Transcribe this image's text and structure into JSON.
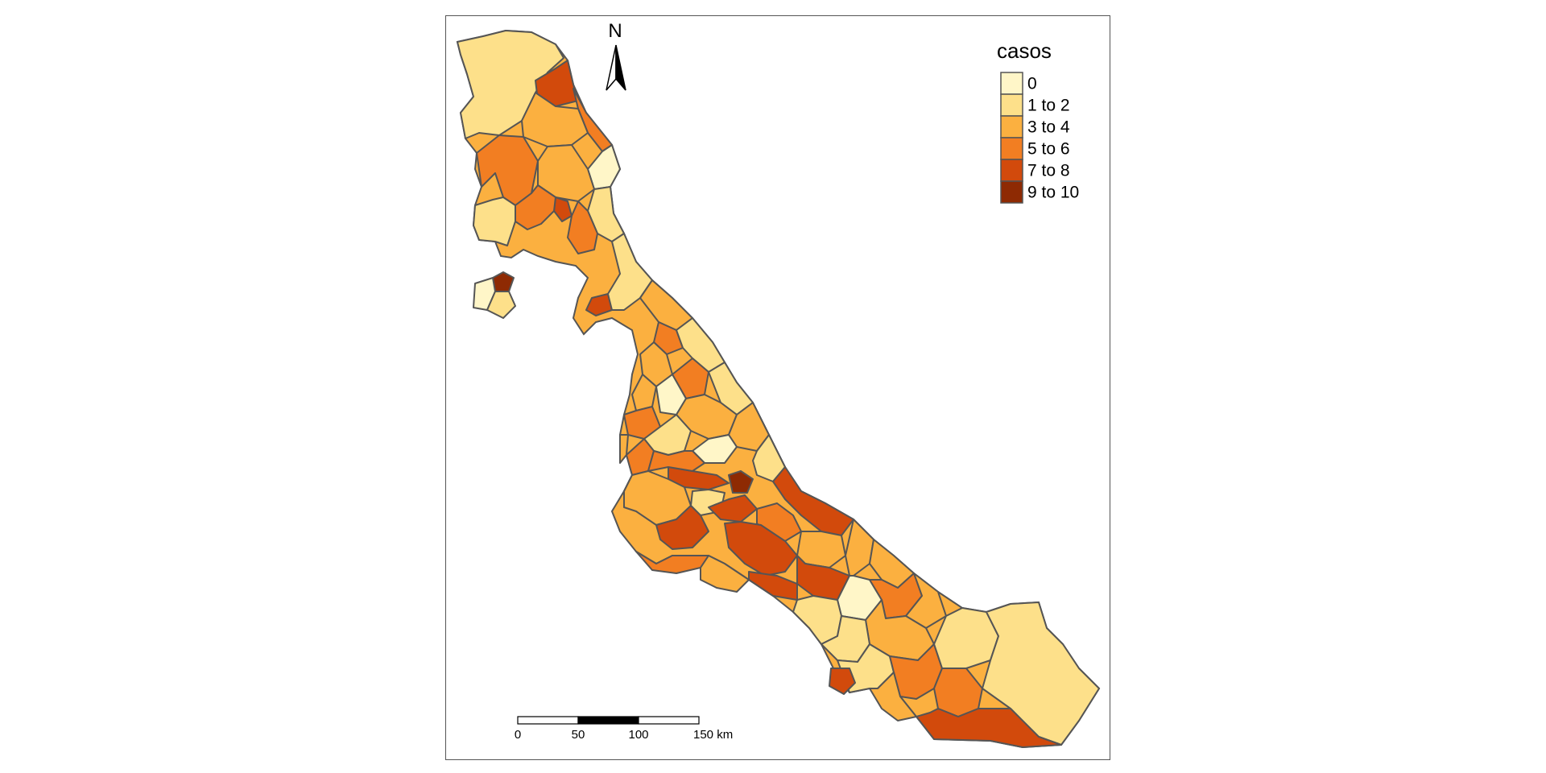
{
  "map": {
    "north_label": "N",
    "legend": {
      "title": "casos",
      "items": [
        {
          "label": "0",
          "color": "#FFF6C8"
        },
        {
          "label": "1 to 2",
          "color": "#FDE08A"
        },
        {
          "label": "3 to 4",
          "color": "#FBB040"
        },
        {
          "label": "5 to 6",
          "color": "#F27E22"
        },
        {
          "label": "7 to 8",
          "color": "#D24A0C"
        },
        {
          "label": "9 to 10",
          "color": "#8E2A03"
        }
      ]
    },
    "scale_bar": {
      "labels": [
        "0",
        "50",
        "100",
        "150 km"
      ]
    },
    "colors": {
      "border": "#555555",
      "frame": "#555555"
    }
  }
}
